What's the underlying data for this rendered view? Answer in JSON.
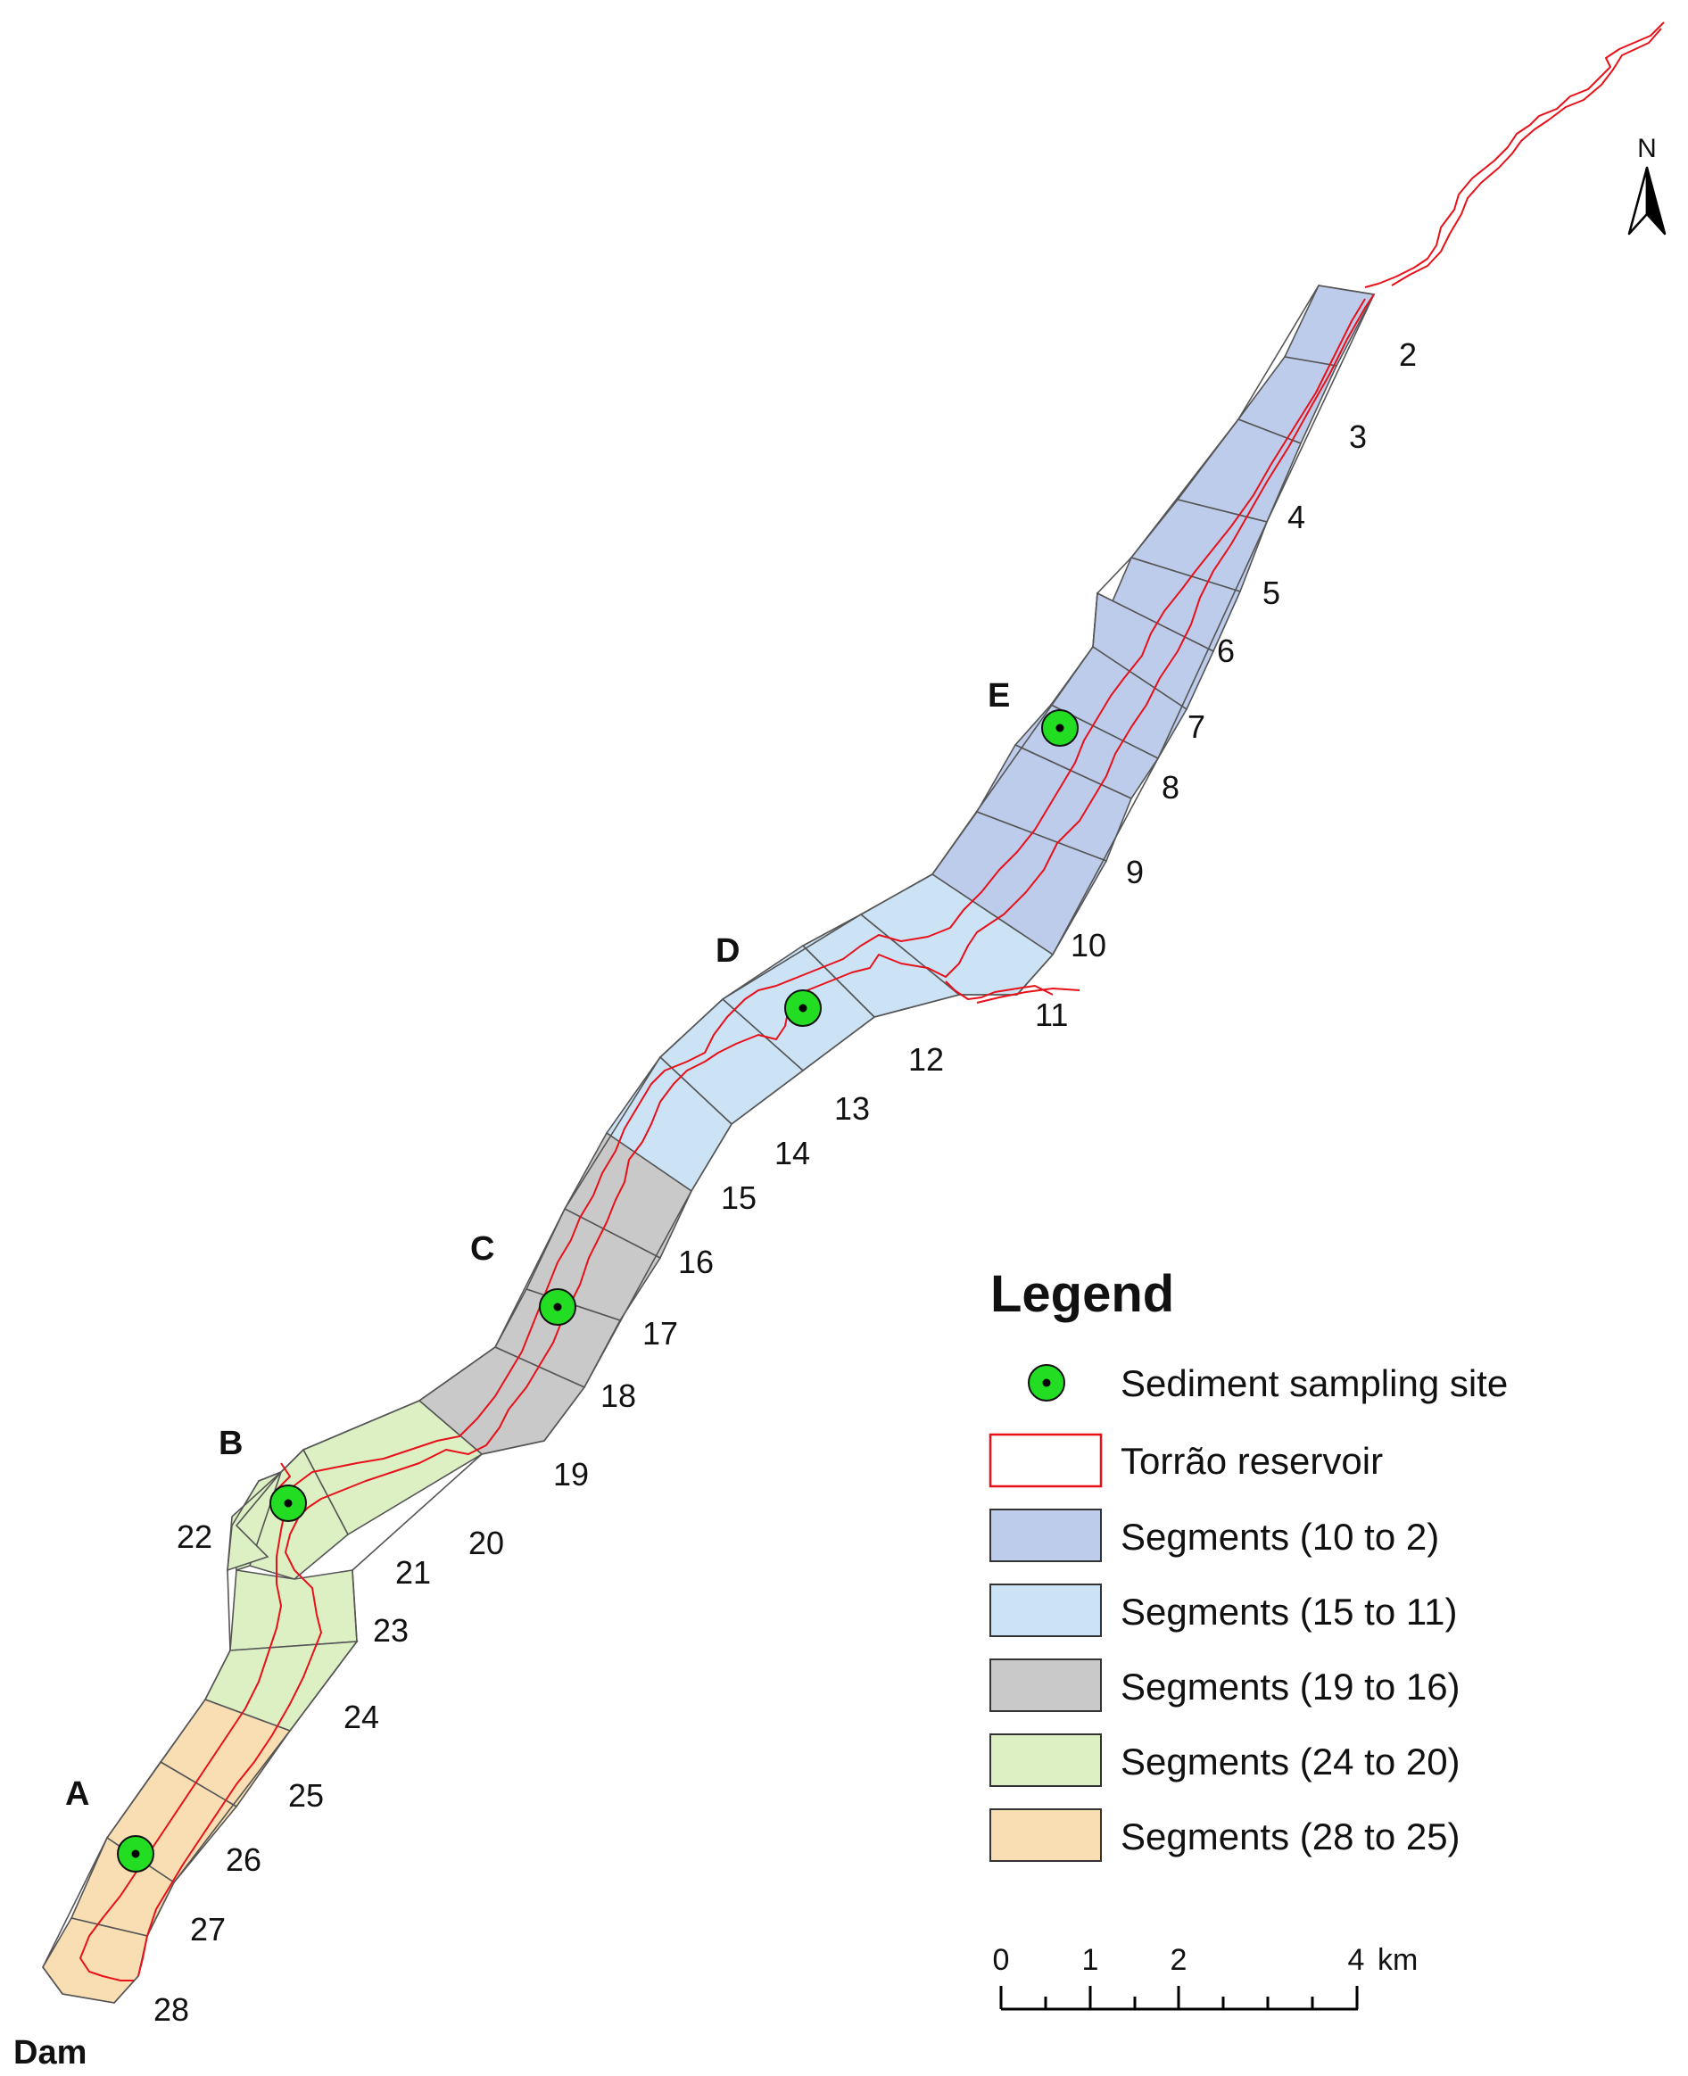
{
  "map": {
    "north_label": "N",
    "dam_label": "Dam",
    "sites": [
      {
        "id": "A",
        "label": "A"
      },
      {
        "id": "B",
        "label": "B"
      },
      {
        "id": "C",
        "label": "C"
      },
      {
        "id": "D",
        "label": "D"
      },
      {
        "id": "E",
        "label": "E"
      }
    ],
    "segment_numbers": [
      "2",
      "3",
      "4",
      "5",
      "6",
      "7",
      "8",
      "9",
      "10",
      "11",
      "12",
      "13",
      "14",
      "15",
      "16",
      "17",
      "18",
      "19",
      "20",
      "21",
      "22",
      "23",
      "24",
      "25",
      "26",
      "27",
      "28"
    ]
  },
  "legend": {
    "title": "Legend",
    "items": [
      {
        "label": "Sediment sampling site",
        "symbol": "green-dot"
      },
      {
        "label": "Torrão reservoir",
        "symbol": "red-outline-box"
      },
      {
        "label": "Segments (10  to 2)",
        "color": "#bdcceb"
      },
      {
        "label": "Segments (15  to 11)",
        "color": "#cce2f5"
      },
      {
        "label": "Segments (19  to 16)",
        "color": "#c9c9c9"
      },
      {
        "label": "Segments (24  to 20)",
        "color": "#ddf0c4"
      },
      {
        "label": "Segments (28 to 25)",
        "color": "#f8deb2"
      }
    ]
  },
  "scale_bar": {
    "ticks": [
      "0",
      "1",
      "2",
      "4"
    ],
    "unit": "km"
  },
  "colors": {
    "river": "#e8111a",
    "site_fill": "#22dd22"
  }
}
